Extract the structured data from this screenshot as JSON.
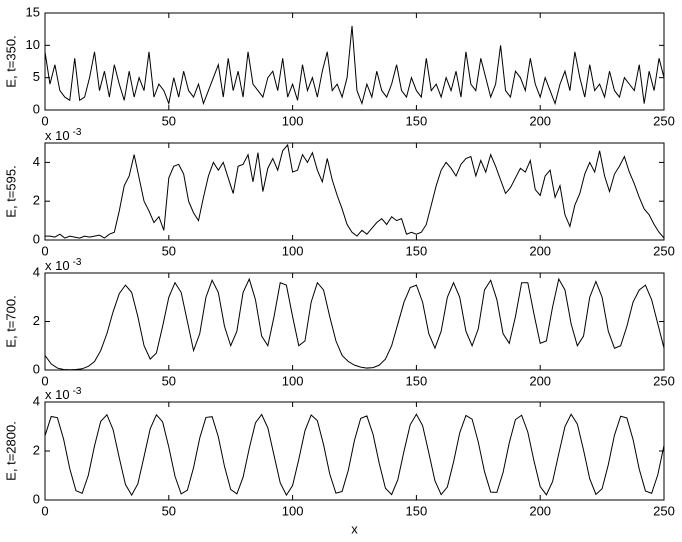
{
  "chart_data": [
    {
      "type": "line",
      "ylabel": "E, t=350.",
      "x": [
        0,
        2,
        4,
        6,
        8,
        10,
        12,
        14,
        16,
        18,
        20,
        22,
        24,
        26,
        28,
        30,
        32,
        34,
        36,
        38,
        40,
        42,
        44,
        46,
        48,
        50,
        52,
        54,
        56,
        58,
        60,
        62,
        64,
        66,
        68,
        70,
        72,
        74,
        76,
        78,
        80,
        82,
        84,
        86,
        88,
        90,
        92,
        94,
        96,
        98,
        100,
        102,
        104,
        106,
        108,
        110,
        112,
        114,
        116,
        118,
        120,
        122,
        124,
        126,
        128,
        130,
        132,
        134,
        136,
        138,
        140,
        142,
        144,
        146,
        148,
        150,
        152,
        154,
        156,
        158,
        160,
        162,
        164,
        166,
        168,
        170,
        172,
        174,
        176,
        178,
        180,
        182,
        184,
        186,
        188,
        190,
        192,
        194,
        196,
        198,
        200,
        202,
        204,
        206,
        208,
        210,
        212,
        214,
        216,
        218,
        220,
        222,
        224,
        226,
        228,
        230,
        232,
        234,
        236,
        238,
        240,
        242,
        244,
        246,
        248,
        250
      ],
      "series": [
        {
          "color": "#000000",
          "values": [
            9,
            4,
            7,
            3,
            2,
            1.5,
            8,
            1.5,
            2,
            5,
            9,
            3,
            6,
            2,
            7,
            4,
            1.5,
            6,
            2,
            5,
            3,
            9,
            2,
            4,
            3,
            1,
            5,
            2,
            6,
            3,
            2,
            4,
            1,
            3,
            5,
            7,
            2,
            8,
            3,
            6,
            2,
            9,
            4,
            3,
            2,
            5,
            6,
            3,
            8,
            2,
            4,
            1.5,
            7,
            3,
            5,
            2,
            6,
            9,
            3,
            4,
            2,
            5,
            13,
            3,
            1,
            4,
            2,
            6,
            3,
            2,
            4,
            7,
            3,
            2,
            5,
            3,
            2,
            8,
            3,
            4,
            2,
            5,
            3,
            6,
            2,
            9,
            4,
            3,
            8,
            5,
            2,
            4,
            10,
            3,
            2,
            6,
            5,
            3,
            8,
            4,
            2,
            5,
            3,
            1,
            4,
            6,
            3,
            9,
            5,
            2,
            7,
            3,
            4,
            2,
            6,
            3,
            2,
            5,
            4,
            3,
            7,
            1,
            6,
            3,
            8,
            5
          ]
        }
      ],
      "xlim": [
        0,
        250
      ],
      "xticks": [
        0,
        50,
        100,
        150,
        200,
        250
      ],
      "ylim": [
        0,
        15
      ],
      "yticks": [
        0,
        5,
        10,
        15
      ]
    },
    {
      "type": "line",
      "ylabel": "E, t=595.",
      "multiplier": {
        "base": "x 10",
        "exponent": "-3"
      },
      "x": [
        0,
        2,
        4,
        6,
        8,
        10,
        12,
        14,
        16,
        18,
        20,
        22,
        24,
        26,
        28,
        30,
        32,
        34,
        36,
        38,
        40,
        42,
        44,
        46,
        48,
        50,
        52,
        54,
        56,
        58,
        60,
        62,
        64,
        66,
        68,
        70,
        72,
        74,
        76,
        78,
        80,
        82,
        84,
        86,
        88,
        90,
        92,
        94,
        96,
        98,
        100,
        102,
        104,
        106,
        108,
        110,
        112,
        114,
        116,
        118,
        120,
        122,
        124,
        126,
        128,
        130,
        132,
        134,
        136,
        138,
        140,
        142,
        144,
        146,
        148,
        150,
        152,
        154,
        156,
        158,
        160,
        162,
        164,
        166,
        168,
        170,
        172,
        174,
        176,
        178,
        180,
        182,
        184,
        186,
        188,
        190,
        192,
        194,
        196,
        198,
        200,
        202,
        204,
        206,
        208,
        210,
        212,
        214,
        216,
        218,
        220,
        222,
        224,
        226,
        228,
        230,
        232,
        234,
        236,
        238,
        240,
        242,
        244,
        246,
        248,
        250
      ],
      "series": [
        {
          "color": "#000000",
          "values": [
            0.2,
            0.2,
            0.15,
            0.3,
            0.1,
            0.2,
            0.15,
            0.1,
            0.2,
            0.15,
            0.2,
            0.25,
            0.1,
            0.3,
            0.4,
            1.5,
            2.8,
            3.3,
            4.4,
            3.2,
            2.0,
            1.5,
            0.9,
            1.2,
            0.5,
            3.2,
            3.8,
            3.9,
            3.4,
            2.0,
            1.4,
            1.0,
            2.2,
            3.3,
            4.0,
            3.6,
            4.0,
            3.2,
            2.4,
            3.8,
            3.9,
            4.4,
            3.0,
            4.5,
            2.5,
            3.7,
            4.2,
            3.6,
            4.6,
            4.9,
            3.5,
            3.6,
            4.4,
            4.0,
            4.5,
            3.6,
            3.0,
            4.2,
            3.1,
            2.3,
            1.6,
            0.8,
            0.4,
            0.2,
            0.5,
            0.3,
            0.6,
            0.9,
            1.1,
            0.8,
            1.2,
            1.0,
            1.1,
            0.3,
            0.4,
            0.3,
            0.4,
            0.8,
            1.8,
            2.8,
            3.6,
            4.0,
            3.7,
            3.3,
            3.9,
            4.2,
            4.3,
            3.3,
            4.1,
            3.5,
            4.4,
            3.8,
            3.1,
            2.4,
            2.7,
            3.2,
            3.7,
            3.5,
            4.1,
            2.6,
            2.3,
            3.3,
            3.6,
            2.2,
            2.8,
            1.3,
            0.7,
            1.8,
            2.4,
            3.4,
            4.0,
            3.5,
            4.6,
            3.3,
            2.5,
            3.4,
            3.8,
            4.3,
            3.5,
            2.9,
            2.2,
            1.6,
            1.3,
            0.8,
            0.4,
            0.1
          ]
        }
      ],
      "xlim": [
        0,
        250
      ],
      "xticks": [
        0,
        50,
        100,
        150,
        200,
        250
      ],
      "ylim": [
        0,
        5
      ],
      "yticks": [
        0,
        2,
        4
      ]
    },
    {
      "type": "line",
      "ylabel": "E, t=700.",
      "multiplier": {
        "base": "x 10",
        "exponent": "-3"
      },
      "x": [
        0,
        2.5,
        5,
        7.5,
        10,
        12.5,
        15,
        17.5,
        20,
        22.5,
        25,
        27.5,
        30,
        32.5,
        35,
        37.5,
        40,
        42.5,
        45,
        47.5,
        50,
        52.5,
        55,
        57.5,
        60,
        62.5,
        65,
        67.5,
        70,
        72.5,
        75,
        77.5,
        80,
        82.5,
        85,
        87.5,
        90,
        92.5,
        95,
        97.5,
        100,
        102.5,
        105,
        107.5,
        110,
        112.5,
        115,
        117.5,
        120,
        122.5,
        125,
        127.5,
        130,
        132.5,
        135,
        137.5,
        140,
        142.5,
        145,
        147.5,
        150,
        152.5,
        155,
        157.5,
        160,
        162.5,
        165,
        167.5,
        170,
        172.5,
        175,
        177.5,
        180,
        182.5,
        185,
        187.5,
        190,
        192.5,
        195,
        197.5,
        200,
        202.5,
        205,
        207.5,
        210,
        212.5,
        215,
        217.5,
        220,
        222.5,
        225,
        227.5,
        230,
        232.5,
        235,
        237.5,
        240,
        242.5,
        245,
        247.5,
        250
      ],
      "series": [
        {
          "color": "#000000",
          "values": [
            0.6,
            0.25,
            0.08,
            0.02,
            0.01,
            0.02,
            0.05,
            0.15,
            0.35,
            0.8,
            1.5,
            2.4,
            3.15,
            3.5,
            3.2,
            2.2,
            1.0,
            0.45,
            0.7,
            1.8,
            3.0,
            3.6,
            3.2,
            2.0,
            0.8,
            1.5,
            3.0,
            3.7,
            3.2,
            1.8,
            1.0,
            1.6,
            3.2,
            3.75,
            2.9,
            1.4,
            1.0,
            2.2,
            3.6,
            3.5,
            2.2,
            1.0,
            1.2,
            2.8,
            3.6,
            3.3,
            2.2,
            1.2,
            0.6,
            0.35,
            0.2,
            0.12,
            0.08,
            0.1,
            0.2,
            0.45,
            1.0,
            1.9,
            2.8,
            3.4,
            3.5,
            2.8,
            1.5,
            0.9,
            1.6,
            3.0,
            3.6,
            3.0,
            1.6,
            1.0,
            1.7,
            3.3,
            3.7,
            2.9,
            1.5,
            1.1,
            2.2,
            3.6,
            3.6,
            2.3,
            1.1,
            1.2,
            2.6,
            3.75,
            3.3,
            1.9,
            1.0,
            1.4,
            3.0,
            3.65,
            3.0,
            1.6,
            0.9,
            1.0,
            1.8,
            2.8,
            3.3,
            3.5,
            2.9,
            1.9,
            0.9
          ]
        }
      ],
      "xlim": [
        0,
        250
      ],
      "xticks": [
        0,
        50,
        100,
        150,
        200,
        250
      ],
      "ylim": [
        0,
        4
      ],
      "yticks": [
        0,
        2,
        4
      ]
    },
    {
      "type": "line",
      "ylabel": "E, t=2800.",
      "xlabel": "x",
      "multiplier": {
        "base": "x 10",
        "exponent": "-3"
      },
      "x": [
        0,
        2.5,
        5,
        7.5,
        10,
        12.5,
        15,
        17.5,
        20,
        22.5,
        25,
        27.5,
        30,
        32.5,
        35,
        37.5,
        40,
        42.5,
        45,
        47.5,
        50,
        52.5,
        55,
        57.5,
        60,
        62.5,
        65,
        67.5,
        70,
        72.5,
        75,
        77.5,
        80,
        82.5,
        85,
        87.5,
        90,
        92.5,
        95,
        97.5,
        100,
        102.5,
        105,
        107.5,
        110,
        112.5,
        115,
        117.5,
        120,
        122.5,
        125,
        127.5,
        130,
        132.5,
        135,
        137.5,
        140,
        142.5,
        145,
        147.5,
        150,
        152.5,
        155,
        157.5,
        160,
        162.5,
        165,
        167.5,
        170,
        172.5,
        175,
        177.5,
        180,
        182.5,
        185,
        187.5,
        190,
        192.5,
        195,
        197.5,
        200,
        202.5,
        205,
        207.5,
        210,
        212.5,
        215,
        217.5,
        220,
        222.5,
        225,
        227.5,
        230,
        232.5,
        235,
        237.5,
        240,
        242.5,
        245,
        247.5,
        250
      ],
      "series": [
        {
          "color": "#000000",
          "values": [
            2.62,
            3.41,
            3.36,
            2.49,
            1.28,
            0.38,
            0.27,
            1.01,
            2.21,
            3.21,
            3.48,
            2.87,
            1.72,
            0.63,
            0.2,
            0.66,
            1.77,
            2.91,
            3.48,
            3.19,
            2.16,
            0.97,
            0.25,
            0.4,
            1.32,
            2.53,
            3.37,
            3.4,
            2.58,
            1.37,
            0.43,
            0.25,
            0.93,
            2.11,
            3.15,
            3.49,
            2.95,
            1.82,
            0.7,
            0.2,
            0.59,
            1.66,
            2.83,
            3.47,
            3.24,
            2.26,
            1.06,
            0.28,
            0.35,
            1.22,
            2.44,
            3.33,
            3.43,
            2.68,
            1.49,
            0.48,
            0.22,
            0.83,
            2.0,
            3.07,
            3.5,
            3.04,
            1.93,
            0.78,
            0.22,
            0.53,
            1.55,
            2.74,
            3.45,
            3.3,
            2.36,
            1.16,
            0.32,
            0.31,
            1.12,
            2.33,
            3.28,
            3.46,
            2.77,
            1.59,
            0.55,
            0.21,
            0.75,
            1.89,
            3.0,
            3.5,
            3.1,
            2.04,
            0.87,
            0.23,
            0.46,
            1.44,
            2.65,
            3.42,
            3.35,
            2.47,
            1.26,
            0.37,
            0.27,
            1.03,
            2.23
          ]
        }
      ],
      "xlim": [
        0,
        250
      ],
      "xticks": [
        0,
        50,
        100,
        150,
        200,
        250
      ],
      "ylim": [
        0,
        4
      ],
      "yticks": [
        0,
        2,
        4
      ]
    }
  ]
}
